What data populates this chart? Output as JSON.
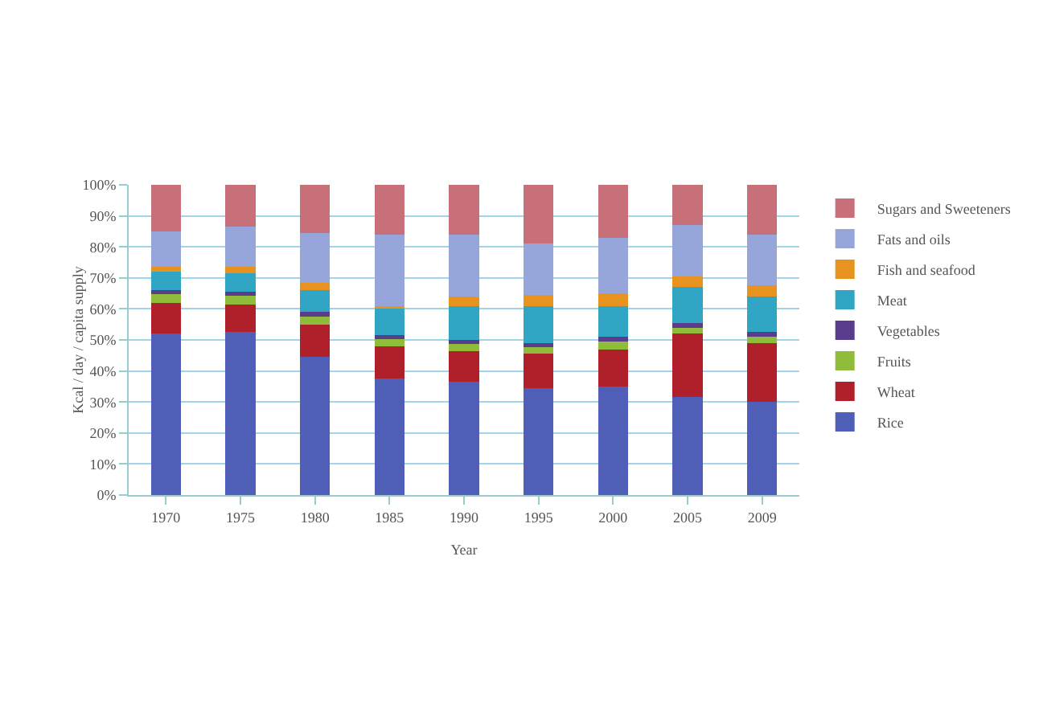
{
  "chart_data": {
    "type": "bar",
    "stacked": true,
    "xlabel": "Year",
    "ylabel": "Kcal / day / capita supply",
    "categories": [
      "1970",
      "1975",
      "1980",
      "1985",
      "1990",
      "1995",
      "2000",
      "2005",
      "2009"
    ],
    "series": [
      {
        "name": "Rice",
        "color": "#4f5fb8",
        "values": [
          52,
          52.5,
          44.5,
          37.5,
          36.5,
          34.5,
          35,
          31.5,
          30
        ]
      },
      {
        "name": "Wheat",
        "color": "#b0202a",
        "values": [
          10,
          9,
          10.5,
          10.5,
          10,
          11,
          12,
          20.5,
          19
        ]
      },
      {
        "name": "Fruits",
        "color": "#8fbc3a",
        "values": [
          3,
          3,
          3,
          2.5,
          2.5,
          2.5,
          2.5,
          2,
          2
        ]
      },
      {
        "name": "Vegetables",
        "color": "#5a3c8c",
        "values": [
          1,
          1,
          1,
          1,
          1,
          1,
          1.5,
          1.5,
          1.5
        ]
      },
      {
        "name": "Meat",
        "color": "#31a5c4",
        "values": [
          6,
          6,
          7,
          9,
          11,
          12,
          10,
          11.5,
          11.5
        ]
      },
      {
        "name": "Fish and seafood",
        "color": "#e8921f",
        "values": [
          1.5,
          2,
          2.5,
          0.5,
          3,
          3.5,
          4,
          3.5,
          3.5
        ]
      },
      {
        "name": "Fats and oils",
        "color": "#97a6da",
        "values": [
          11.5,
          13,
          16,
          23,
          20,
          16.5,
          18,
          16.5,
          16.5
        ]
      },
      {
        "name": "Sugars and Sweeteners",
        "color": "#c7707a",
        "values": [
          15,
          13.5,
          15.5,
          16,
          16,
          19,
          17,
          13,
          16
        ]
      }
    ],
    "ylim": [
      0,
      100
    ],
    "yticks": [
      {
        "value": 0,
        "label": "0%"
      },
      {
        "value": 10,
        "label": "10%"
      },
      {
        "value": 20,
        "label": "20%"
      },
      {
        "value": 30,
        "label": "30%"
      },
      {
        "value": 40,
        "label": "40%"
      },
      {
        "value": 50,
        "label": "50%"
      },
      {
        "value": 60,
        "label": "60%"
      },
      {
        "value": 70,
        "label": "70%"
      },
      {
        "value": 80,
        "label": "80%"
      },
      {
        "value": 90,
        "label": "90%"
      },
      {
        "value": 100,
        "label": "100%"
      }
    ],
    "grid": "y",
    "legend": "right"
  }
}
